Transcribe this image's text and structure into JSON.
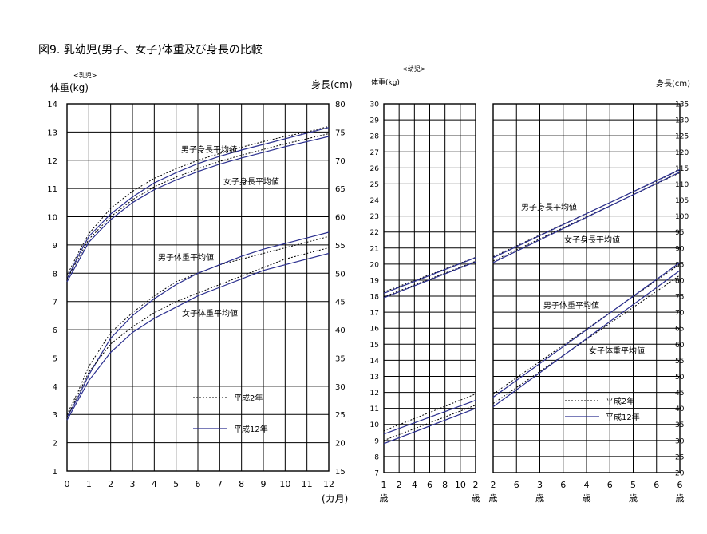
{
  "figure": {
    "title": "図9. 乳幼児(男子、女子)体重及び身長の比較"
  },
  "legend": {
    "dotted_label": "平成2年",
    "solid_label": "平成12年"
  },
  "colors": {
    "dotted_series": "#000000",
    "solid_series": "#2b2f8f",
    "grid": "#000000"
  },
  "chart_data": [
    {
      "type": "line",
      "panel": "乳児",
      "panel_label": "<乳児>",
      "xlabel": "(カ月)",
      "ylabel_left": "体重(kg)",
      "ylabel_right": "身長(cm)",
      "x_ticks": [
        "0",
        "1",
        "2",
        "3",
        "4",
        "5",
        "6",
        "7",
        "8",
        "9",
        "10",
        "11",
        "12"
      ],
      "xlim": [
        0,
        12
      ],
      "ylim_left": [
        1,
        14
      ],
      "ylim_right": [
        15,
        80
      ],
      "grid": true,
      "annotations": [
        {
          "text": "男子身長平均値"
        },
        {
          "text": "女子身長平均値"
        },
        {
          "text": "男子体重平均値"
        },
        {
          "text": "女子体重平均値"
        }
      ],
      "series": [
        {
          "group": "男子身長平均値",
          "name": "平成2年",
          "axis": "right",
          "style": "dotted",
          "x": [
            0,
            0.5,
            1,
            2,
            3,
            4,
            5,
            6,
            7,
            8,
            9,
            10,
            11,
            12
          ],
          "y": [
            49.6,
            53.5,
            57,
            61.5,
            64.5,
            66.8,
            68.5,
            70,
            71.2,
            72.3,
            73.3,
            74.2,
            75,
            76
          ]
        },
        {
          "group": "男子身長平均値",
          "name": "平成12年",
          "axis": "right",
          "style": "solid",
          "x": [
            0,
            0.5,
            1,
            2,
            3,
            4,
            5,
            6,
            7,
            8,
            9,
            10,
            11,
            12
          ],
          "y": [
            49,
            53,
            56.5,
            60.5,
            63.5,
            66,
            67.8,
            69.4,
            70.7,
            71.8,
            72.8,
            73.8,
            74.8,
            75.8
          ]
        },
        {
          "group": "女子身長平均値",
          "name": "平成2年",
          "axis": "right",
          "style": "dotted",
          "x": [
            0,
            0.5,
            1,
            2,
            3,
            4,
            5,
            6,
            7,
            8,
            9,
            10,
            11,
            12
          ],
          "y": [
            49,
            52.5,
            56,
            60,
            63,
            65.3,
            67,
            68.5,
            69.8,
            70.9,
            71.9,
            72.9,
            73.8,
            74.7
          ]
        },
        {
          "group": "女子身長平均値",
          "name": "平成12年",
          "axis": "right",
          "style": "solid",
          "x": [
            0,
            0.5,
            1,
            2,
            3,
            4,
            5,
            6,
            7,
            8,
            9,
            10,
            11,
            12
          ],
          "y": [
            48.5,
            52,
            55.5,
            59.5,
            62.5,
            64.8,
            66.5,
            68,
            69.3,
            70.4,
            71.4,
            72.4,
            73.3,
            74.2
          ]
        },
        {
          "group": "男子体重平均値",
          "name": "平成2年",
          "axis": "left",
          "style": "dotted",
          "x": [
            0,
            0.5,
            1,
            2,
            3,
            4,
            5,
            6,
            7,
            8,
            9,
            10,
            11,
            12
          ],
          "y": [
            3,
            3.8,
            4.7,
            5.9,
            6.6,
            7.2,
            7.7,
            8,
            8.3,
            8.5,
            8.7,
            8.9,
            9.1,
            9.3
          ]
        },
        {
          "group": "男子体重平均値",
          "name": "平成12年",
          "axis": "left",
          "style": "solid",
          "x": [
            0,
            0.5,
            1,
            2,
            3,
            4,
            5,
            6,
            7,
            8,
            9,
            10,
            11,
            12
          ],
          "y": [
            2.9,
            3.6,
            4.4,
            5.7,
            6.5,
            7.1,
            7.6,
            8,
            8.3,
            8.6,
            8.85,
            9.05,
            9.25,
            9.45
          ]
        },
        {
          "group": "女子体重平均値",
          "name": "平成2年",
          "axis": "left",
          "style": "dotted",
          "x": [
            0,
            0.5,
            1,
            2,
            3,
            4,
            5,
            6,
            7,
            8,
            9,
            10,
            11,
            12
          ],
          "y": [
            2.9,
            3.7,
            4.5,
            5.5,
            6.1,
            6.6,
            7,
            7.3,
            7.6,
            7.9,
            8.2,
            8.5,
            8.7,
            8.9
          ]
        },
        {
          "group": "女子体重平均値",
          "name": "平成12年",
          "axis": "left",
          "style": "solid",
          "x": [
            0,
            0.5,
            1,
            2,
            3,
            4,
            5,
            6,
            7,
            8,
            9,
            10,
            11,
            12
          ],
          "y": [
            2.8,
            3.5,
            4.2,
            5.2,
            5.9,
            6.4,
            6.8,
            7.2,
            7.5,
            7.8,
            8.1,
            8.3,
            8.5,
            8.7
          ]
        }
      ]
    },
    {
      "type": "line",
      "panel": "幼児",
      "panel_label": "<幼児>",
      "ylabel_left": "体重(kg)",
      "ylabel_right": "身長(cm)",
      "ylim_left": [
        7,
        30
      ],
      "ylim_right": [
        20,
        135
      ],
      "grid": true,
      "x_ticks_1": [
        "1",
        "2",
        "4",
        "6",
        "8",
        "10",
        "2"
      ],
      "x_ticks_1_years": [
        "歳",
        "",
        "",
        "",
        "",
        "",
        "歳"
      ],
      "x_ticks_2": [
        "2",
        "6",
        "3",
        "6",
        "4",
        "6",
        "5",
        "6",
        "6"
      ],
      "x_ticks_2_years": [
        "歳",
        "",
        "歳",
        "",
        "歳",
        "",
        "歳",
        "",
        "歳"
      ],
      "annotations": [
        {
          "text": "男子身長平均値"
        },
        {
          "text": "女子身長平均値"
        },
        {
          "text": "男子体重平均値"
        },
        {
          "text": "女子体重平均値"
        }
      ],
      "series_segment_1": [
        {
          "group": "男子身長平均値",
          "name": "平成2年",
          "axis": "right",
          "style": "dotted",
          "x": [
            1,
            2
          ],
          "y": [
            76.3,
            87.1
          ]
        },
        {
          "group": "男子身長平均値",
          "name": "平成12年",
          "axis": "right",
          "style": "solid",
          "x": [
            1,
            2
          ],
          "y": [
            75.9,
            87
          ]
        },
        {
          "group": "女子身長平均値",
          "name": "平成2年",
          "axis": "right",
          "style": "dotted",
          "x": [
            1,
            2
          ],
          "y": [
            74.8,
            85.9
          ]
        },
        {
          "group": "女子身長平均値",
          "name": "平成12年",
          "axis": "right",
          "style": "solid",
          "x": [
            1,
            2
          ],
          "y": [
            74.5,
            85.7
          ]
        },
        {
          "group": "男子体重平均値",
          "name": "平成2年",
          "axis": "left",
          "style": "dotted",
          "x": [
            1,
            2
          ],
          "y": [
            9.6,
            11.9
          ]
        },
        {
          "group": "男子体重平均値",
          "name": "平成12年",
          "axis": "left",
          "style": "solid",
          "x": [
            1,
            2
          ],
          "y": [
            9.4,
            11.5
          ]
        },
        {
          "group": "女子体重平均値",
          "name": "平成2年",
          "axis": "left",
          "style": "dotted",
          "x": [
            1,
            2
          ],
          "y": [
            9,
            11.2
          ]
        },
        {
          "group": "女子体重平均値",
          "name": "平成12年",
          "axis": "left",
          "style": "solid",
          "x": [
            1,
            2
          ],
          "y": [
            8.8,
            11
          ]
        }
      ],
      "series_segment_2": [
        {
          "group": "男子身長平均値",
          "name": "平成2年",
          "axis": "right",
          "style": "dotted",
          "x": [
            2,
            6
          ],
          "y": [
            87.3,
            114.3
          ]
        },
        {
          "group": "男子身長平均値",
          "name": "平成12年",
          "axis": "right",
          "style": "solid",
          "x": [
            2,
            6
          ],
          "y": [
            87,
            114.5
          ]
        },
        {
          "group": "女子身長平均値",
          "name": "平成2年",
          "axis": "right",
          "style": "dotted",
          "x": [
            2,
            6
          ],
          "y": [
            86,
            113.5
          ]
        },
        {
          "group": "女子身長平均値",
          "name": "平成12年",
          "axis": "right",
          "style": "solid",
          "x": [
            2,
            6
          ],
          "y": [
            85.5,
            113.7
          ]
        },
        {
          "group": "男子体重平均値",
          "name": "平成2年",
          "axis": "left",
          "style": "dotted",
          "x": [
            2,
            6
          ],
          "y": [
            11.9,
            20
          ]
        },
        {
          "group": "男子体重平均値",
          "name": "平成12年",
          "axis": "left",
          "style": "solid",
          "x": [
            2,
            6
          ],
          "y": [
            11.7,
            20.1
          ]
        },
        {
          "group": "女子体重平均値",
          "name": "平成2年",
          "axis": "left",
          "style": "dotted",
          "x": [
            2,
            6
          ],
          "y": [
            11.3,
            19.3
          ]
        },
        {
          "group": "女子体重平均値",
          "name": "平成12年",
          "axis": "left",
          "style": "solid",
          "x": [
            2,
            6
          ],
          "y": [
            11.1,
            19.6
          ]
        }
      ]
    }
  ]
}
